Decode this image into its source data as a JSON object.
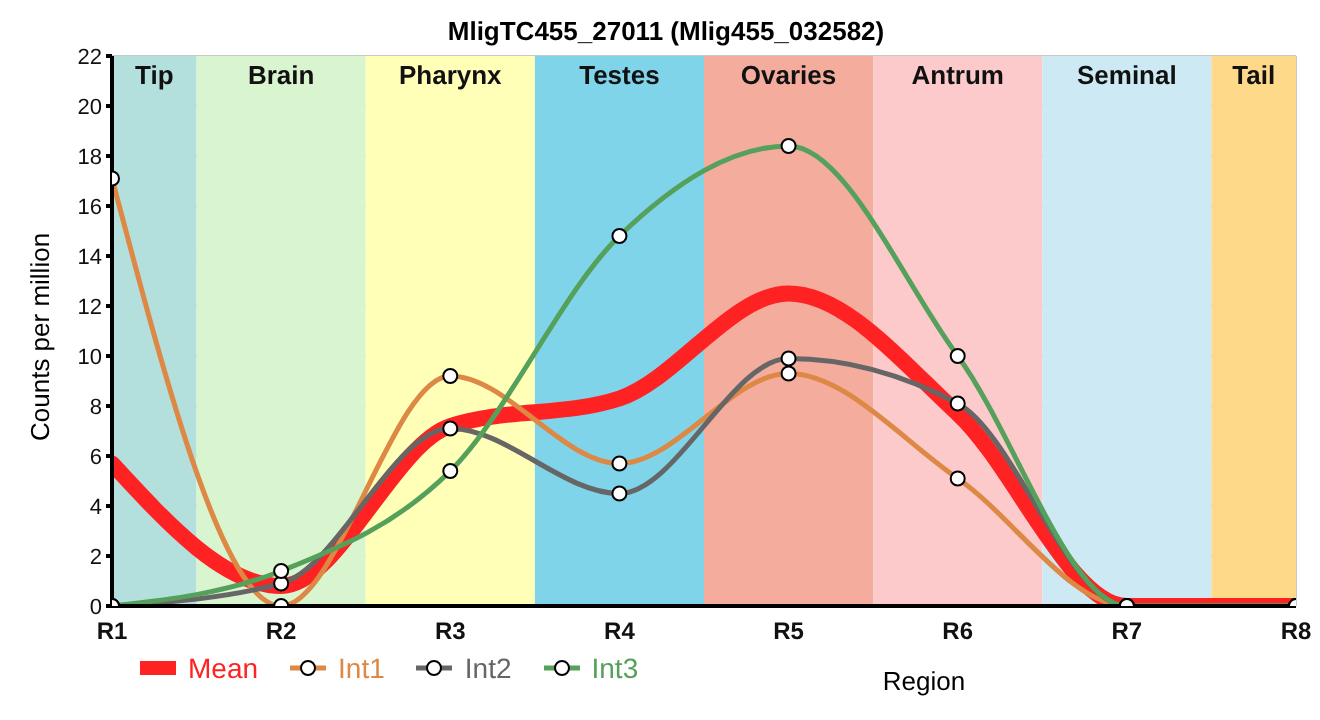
{
  "chart_data": {
    "type": "line",
    "title": "MligTC455_27011 (Mlig455_032582)",
    "xlabel": "Region",
    "ylabel": "Counts per million",
    "categories": [
      "R1",
      "R2",
      "R3",
      "R4",
      "R5",
      "R6",
      "R7",
      "R8"
    ],
    "series": [
      {
        "name": "Mean",
        "color": "#ff2222",
        "marker": "none",
        "values": [
          5.7,
          0.8,
          7.2,
          8.3,
          12.5,
          7.7,
          0,
          0
        ]
      },
      {
        "name": "Int1",
        "color": "#dd8844",
        "values": [
          17.1,
          0,
          9.2,
          5.7,
          9.3,
          5.1,
          0,
          0
        ]
      },
      {
        "name": "Int2",
        "color": "#666666",
        "values": [
          0,
          0.9,
          7.1,
          4.5,
          9.9,
          8.1,
          0,
          0
        ]
      },
      {
        "name": "Int3",
        "color": "#55a05a",
        "values": [
          0,
          1.4,
          5.4,
          14.8,
          18.4,
          10.0,
          0,
          0
        ]
      }
    ],
    "bands": [
      {
        "axis": "x",
        "from": "R1",
        "to": "R1",
        "label": "Tip",
        "color": "#b3e0dc"
      },
      {
        "axis": "x",
        "from": "R2",
        "to": "R2",
        "label": "Brain",
        "color": "#d8f5d0"
      },
      {
        "axis": "x",
        "from": "R3",
        "to": "R3",
        "label": "Pharynx",
        "color": "#ffffb8"
      },
      {
        "axis": "x",
        "from": "R4",
        "to": "R4",
        "label": "Testes",
        "color": "#7fd4ea"
      },
      {
        "axis": "x",
        "from": "R5",
        "to": "R5",
        "label": "Ovaries",
        "color": "#f4ac9c"
      },
      {
        "axis": "x",
        "from": "R6",
        "to": "R6",
        "label": "Antrum",
        "color": "#fccaca"
      },
      {
        "axis": "x",
        "from": "R7",
        "to": "R7",
        "label": "Seminal",
        "color": "#cde9f3"
      },
      {
        "axis": "x",
        "from": "R8",
        "to": "R8",
        "label": "Tail",
        "color": "#ffd98a"
      }
    ],
    "ylim": [
      0,
      22
    ],
    "yticks": [
      0,
      2,
      4,
      6,
      8,
      10,
      12,
      14,
      16,
      18,
      20,
      22
    ],
    "grid": true,
    "legend": "bottom",
    "marker": "circle",
    "line_style": "solid"
  }
}
